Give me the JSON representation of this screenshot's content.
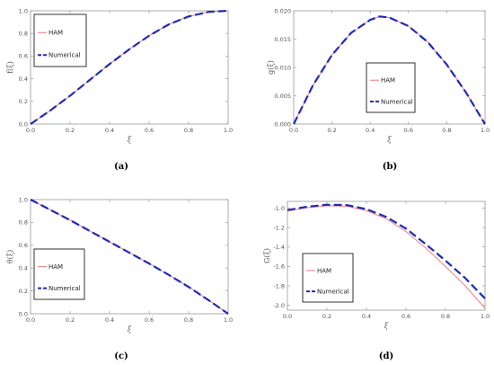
{
  "colors": {
    "ham": "#f0868a",
    "numerical": "#1f2bb8",
    "frame": "#9a9a9a",
    "text": "#555555"
  },
  "legend_labels": {
    "ham": "HAM",
    "numerical": "Numerical"
  },
  "chart_data": [
    {
      "type": "line",
      "caption": "(a)",
      "xlabel": "ξ",
      "ylabel": "f(ξ)",
      "xlim": [
        0,
        1
      ],
      "ylim": [
        0,
        1
      ],
      "xticks": [
        0.0,
        0.2,
        0.4,
        0.6,
        0.8,
        1.0
      ],
      "yticks": [
        0.0,
        0.2,
        0.4,
        0.6,
        0.8,
        1.0
      ],
      "tick_decimals": 1,
      "legend": "upper-left",
      "x": [
        0,
        0.1,
        0.2,
        0.3,
        0.4,
        0.5,
        0.6,
        0.7,
        0.8,
        0.9,
        1.0
      ],
      "series": [
        {
          "name": "HAM",
          "style": "solid",
          "values": [
            0,
            0.12,
            0.25,
            0.39,
            0.53,
            0.66,
            0.78,
            0.88,
            0.95,
            0.99,
            1.0
          ]
        },
        {
          "name": "Numerical",
          "style": "dashed",
          "values": [
            0,
            0.12,
            0.25,
            0.39,
            0.53,
            0.66,
            0.78,
            0.88,
            0.95,
            0.99,
            1.0
          ]
        }
      ]
    },
    {
      "type": "line",
      "caption": "(b)",
      "xlabel": "ξ",
      "ylabel": "g(ξ)",
      "xlim": [
        0,
        1
      ],
      "ylim": [
        0,
        0.02
      ],
      "xticks": [
        0.0,
        0.2,
        0.4,
        0.6,
        0.8,
        1.0
      ],
      "yticks": [
        0.0,
        0.005,
        0.01,
        0.015,
        0.02
      ],
      "tick_decimals": 3,
      "legend": "lower-right",
      "x": [
        0,
        0.1,
        0.2,
        0.3,
        0.4,
        0.45,
        0.5,
        0.6,
        0.7,
        0.8,
        0.9,
        1.0
      ],
      "series": [
        {
          "name": "HAM",
          "style": "solid",
          "values": [
            0,
            0.0068,
            0.0122,
            0.0161,
            0.0184,
            0.019,
            0.0188,
            0.0173,
            0.0145,
            0.0105,
            0.0056,
            0
          ]
        },
        {
          "name": "Numerical",
          "style": "dashed",
          "values": [
            0,
            0.0068,
            0.0122,
            0.0161,
            0.0184,
            0.019,
            0.0188,
            0.0173,
            0.0145,
            0.0105,
            0.0056,
            0
          ]
        }
      ]
    },
    {
      "type": "line",
      "caption": "(c)",
      "xlabel": "ξ",
      "ylabel": "θ(ξ)",
      "xlim": [
        0,
        1
      ],
      "ylim": [
        0,
        1
      ],
      "xticks": [
        0.0,
        0.2,
        0.4,
        0.6,
        0.8,
        1.0
      ],
      "yticks": [
        0.0,
        0.2,
        0.4,
        0.6,
        0.8,
        1.0
      ],
      "tick_decimals": 1,
      "legend": "lower-left",
      "x": [
        0,
        0.1,
        0.2,
        0.3,
        0.4,
        0.5,
        0.6,
        0.7,
        0.8,
        0.9,
        1.0
      ],
      "series": [
        {
          "name": "HAM",
          "style": "solid",
          "values": [
            1.0,
            0.91,
            0.82,
            0.725,
            0.63,
            0.535,
            0.44,
            0.34,
            0.235,
            0.12,
            0
          ]
        },
        {
          "name": "Numerical",
          "style": "dashed",
          "values": [
            1.0,
            0.91,
            0.82,
            0.725,
            0.63,
            0.535,
            0.44,
            0.34,
            0.235,
            0.12,
            0
          ]
        }
      ]
    },
    {
      "type": "line",
      "caption": "(d)",
      "xlabel": "ξ",
      "ylabel": "G(ξ)",
      "xlim": [
        0,
        1
      ],
      "ylim": [
        -2.05,
        -0.93
      ],
      "xticks": [
        0.0,
        0.2,
        0.4,
        0.6,
        0.8,
        1.0
      ],
      "yticks": [
        -2.0,
        -1.8,
        -1.6,
        -1.4,
        -1.2,
        -1.0
      ],
      "tick_decimals": 1,
      "legend": "lower-left",
      "x": [
        0,
        0.1,
        0.2,
        0.3,
        0.4,
        0.5,
        0.6,
        0.7,
        0.8,
        0.9,
        1.0
      ],
      "series": [
        {
          "name": "HAM",
          "style": "solid",
          "values": [
            -1.03,
            -0.995,
            -0.975,
            -0.98,
            -1.025,
            -1.11,
            -1.24,
            -1.41,
            -1.6,
            -1.8,
            -2.03
          ]
        },
        {
          "name": "Numerical",
          "style": "dashed",
          "values": [
            -1.02,
            -0.985,
            -0.965,
            -0.968,
            -1.01,
            -1.09,
            -1.21,
            -1.37,
            -1.54,
            -1.72,
            -1.93
          ]
        }
      ]
    }
  ]
}
